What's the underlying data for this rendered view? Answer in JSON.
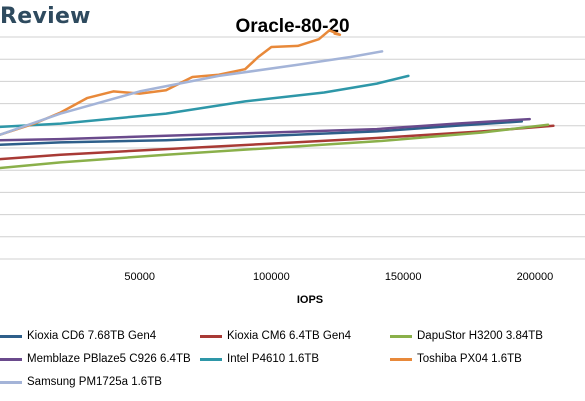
{
  "brand": "Review",
  "chart_data": {
    "type": "line",
    "title": "Oracle-80-20",
    "xlabel": "IOPS",
    "ylabel": "",
    "xlim": [
      -3000,
      219000
    ],
    "ylim": [
      0,
      10
    ],
    "x_ticks": [
      50000,
      100000,
      150000,
      200000
    ],
    "x_tick_labels": [
      "50000",
      "100000",
      "150000",
      "200000"
    ],
    "y_gridlines": [
      0,
      1,
      2,
      3,
      4,
      5,
      6,
      7,
      8,
      9,
      10
    ],
    "grid": true,
    "legend_position": "bottom",
    "series": [
      {
        "name": "Kioxia CD6 7.68TB Gen4",
        "color": "#2e5f8a",
        "x": [
          -3000,
          20000,
          60000,
          100000,
          140000,
          170000,
          195000
        ],
        "y": [
          5.15,
          5.25,
          5.35,
          5.55,
          5.75,
          6.0,
          6.2
        ]
      },
      {
        "name": "Kioxia CM6 6.4TB Gen4",
        "color": "#a83a35",
        "x": [
          -3000,
          20000,
          60000,
          100000,
          140000,
          180000,
          207000
        ],
        "y": [
          4.5,
          4.7,
          4.95,
          5.2,
          5.45,
          5.75,
          6.0
        ]
      },
      {
        "name": "DapuStor H3200 3.84TB",
        "color": "#8ab04a",
        "x": [
          -3000,
          20000,
          60000,
          100000,
          140000,
          180000,
          205000
        ],
        "y": [
          4.1,
          4.35,
          4.7,
          5.0,
          5.3,
          5.7,
          6.05
        ]
      },
      {
        "name": "Memblaze PBlaze5 C926 6.4TB",
        "color": "#6a4a8c",
        "x": [
          -3000,
          20000,
          60000,
          100000,
          140000,
          170000,
          198000
        ],
        "y": [
          5.35,
          5.4,
          5.55,
          5.7,
          5.85,
          6.1,
          6.3
        ]
      },
      {
        "name": "Intel P4610 1.6TB",
        "color": "#2e97a8",
        "x": [
          -3000,
          20000,
          60000,
          90000,
          120000,
          140000,
          152000
        ],
        "y": [
          5.95,
          6.1,
          6.55,
          7.1,
          7.5,
          7.9,
          8.25
        ]
      },
      {
        "name": "Toshiba PX04 1.6TB",
        "color": "#e8893a",
        "x": [
          -3000,
          10000,
          20000,
          30000,
          40000,
          50000,
          60000,
          70000,
          80000,
          90000,
          95000,
          100000,
          110000,
          118000,
          122000,
          126000,
          124000
        ],
        "y": [
          5.6,
          6.1,
          6.6,
          7.25,
          7.55,
          7.45,
          7.6,
          8.2,
          8.3,
          8.55,
          9.1,
          9.55,
          9.6,
          9.9,
          10.3,
          10.1,
          10.15
        ]
      },
      {
        "name": "Samsung PM1725a 1.6TB",
        "color": "#a4b4d8",
        "x": [
          -3000,
          20000,
          50000,
          80000,
          110000,
          130000,
          142000
        ],
        "y": [
          5.6,
          6.55,
          7.55,
          8.25,
          8.75,
          9.1,
          9.35
        ]
      }
    ]
  }
}
